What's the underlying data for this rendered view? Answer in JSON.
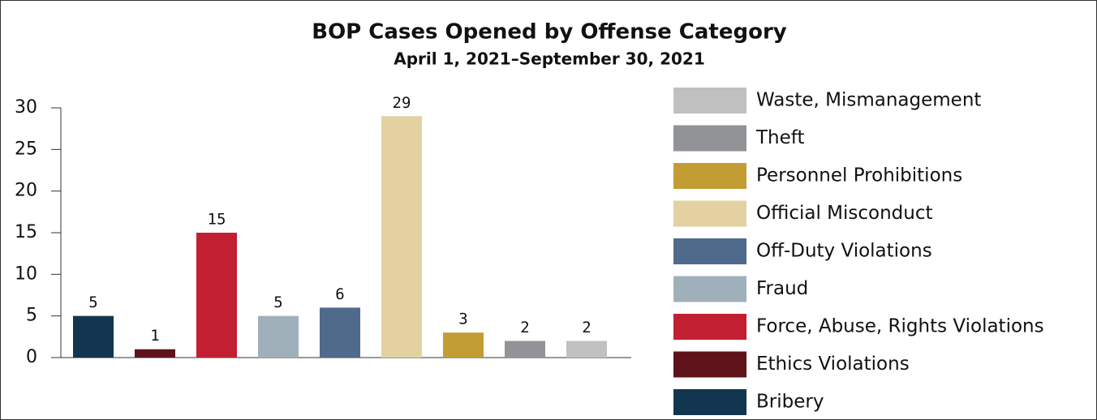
{
  "chart_data": {
    "type": "bar",
    "title": "BOP Cases Opened by Offense Category",
    "subtitle": "April 1, 2021–September 30, 2021",
    "categories": [
      "Bribery",
      "Ethics Violations",
      "Force, Abuse, Rights Violations",
      "Fraud",
      "Off-Duty Violations",
      "Official Misconduct",
      "Personnel Prohibitions",
      "Theft",
      "Waste, Mismanagement"
    ],
    "values": [
      5,
      1,
      15,
      5,
      6,
      29,
      3,
      2,
      2
    ],
    "colors": [
      "#12364f",
      "#5e1219",
      "#c21f32",
      "#a0b0bb",
      "#506a8c",
      "#e4d1a2",
      "#c29d33",
      "#929397",
      "#c0c0c0"
    ],
    "ylim": [
      0,
      30
    ],
    "yticks": [
      0,
      5,
      10,
      15,
      20,
      25,
      30
    ],
    "legend": "right"
  }
}
